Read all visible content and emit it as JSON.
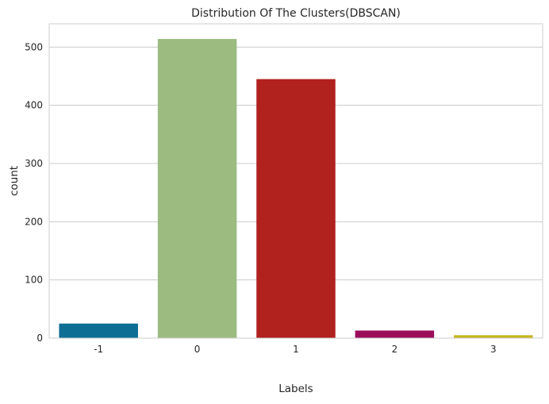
{
  "chart_data": {
    "type": "bar",
    "title": "Distribution Of The Clusters(DBSCAN)",
    "xlabel": "Labels",
    "ylabel": "count",
    "categories": [
      "-1",
      "0",
      "1",
      "2",
      "3"
    ],
    "values": [
      25,
      514,
      445,
      13,
      5
    ],
    "colors": [
      "#0e6e94",
      "#9cbb81",
      "#b1211e",
      "#9a0d5b",
      "#c7b61f"
    ],
    "ylim": [
      0,
      540
    ],
    "yticks": [
      0,
      100,
      200,
      300,
      400,
      500
    ],
    "grid": "horizontal",
    "legend": "none"
  }
}
